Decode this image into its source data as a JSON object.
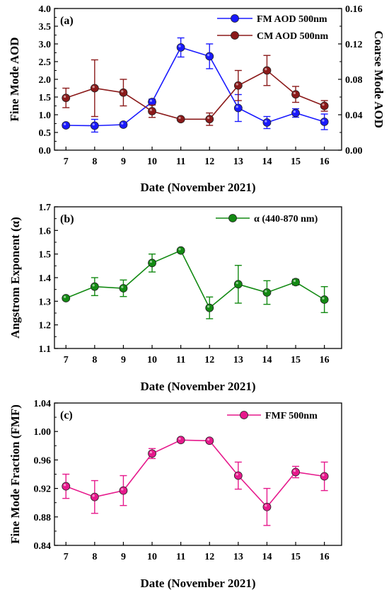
{
  "chart_data": [
    {
      "type": "line",
      "panel_label": "(a)",
      "x": [
        7,
        8,
        9,
        10,
        11,
        12,
        13,
        14,
        15,
        16
      ],
      "xlabel": "Date (November 2021)",
      "ylabel": "Fine Mode AOD",
      "ylabel_right": "Coarse Mode AOD",
      "ylim": [
        0.0,
        4.0
      ],
      "yticks": [
        "0.0",
        "0.5",
        "1.0",
        "1.5",
        "2.0",
        "2.5",
        "3.0",
        "3.5",
        "4.0"
      ],
      "ylim_right": [
        0.0,
        0.16
      ],
      "yticks_right": [
        "0.00",
        "0.04",
        "0.08",
        "0.12",
        "0.16"
      ],
      "legend_position": "top-right",
      "series": [
        {
          "name": "FM AOD 500nm",
          "axis": "left",
          "color": "#1a1aff",
          "values": [
            0.7,
            0.69,
            0.72,
            1.36,
            2.9,
            2.65,
            1.19,
            0.78,
            1.05,
            0.8
          ],
          "error": [
            0.06,
            0.18,
            0.06,
            0.08,
            0.27,
            0.35,
            0.38,
            0.17,
            0.12,
            0.22
          ]
        },
        {
          "name": "CM AOD 500nm",
          "axis": "right",
          "color": "#8b1a1a",
          "values": [
            0.059,
            0.07,
            0.065,
            0.044,
            0.035,
            0.035,
            0.073,
            0.09,
            0.063,
            0.05
          ],
          "error": [
            0.011,
            0.032,
            0.015,
            0.007,
            0.002,
            0.007,
            0.017,
            0.017,
            0.009,
            0.006
          ]
        }
      ]
    },
    {
      "type": "line",
      "panel_label": "(b)",
      "x": [
        7,
        8,
        9,
        10,
        11,
        12,
        13,
        14,
        15,
        16
      ],
      "xlabel": "Date (November 2021)",
      "ylabel": "Angstrom Exponent (α)",
      "ylim": [
        1.1,
        1.7
      ],
      "yticks": [
        "1.1",
        "1.2",
        "1.3",
        "1.4",
        "1.5",
        "1.6",
        "1.7"
      ],
      "legend_position": "top-right",
      "series": [
        {
          "name": "α (440-870 nm)",
          "color": "#138a13",
          "values": [
            1.313,
            1.362,
            1.355,
            1.462,
            1.515,
            1.272,
            1.372,
            1.337,
            1.381,
            1.307
          ],
          "error": [
            0.008,
            0.038,
            0.035,
            0.038,
            0.008,
            0.046,
            0.08,
            0.05,
            0.012,
            0.055
          ]
        }
      ]
    },
    {
      "type": "line",
      "panel_label": "(c)",
      "x": [
        7,
        8,
        9,
        10,
        11,
        12,
        13,
        14,
        15,
        16
      ],
      "xlabel": "Date (November 2021)",
      "ylabel": "Fine Mode Fraction (FMF)",
      "ylim": [
        0.84,
        1.04
      ],
      "yticks": [
        "0.84",
        "0.88",
        "0.92",
        "0.96",
        "1.00",
        "1.04"
      ],
      "legend_position": "top-right",
      "series": [
        {
          "name": "FMF 500nm",
          "color": "#e6198c",
          "values": [
            0.923,
            0.908,
            0.917,
            0.969,
            0.988,
            0.987,
            0.938,
            0.894,
            0.943,
            0.937
          ],
          "error": [
            0.017,
            0.023,
            0.021,
            0.007,
            0.002,
            0.003,
            0.019,
            0.026,
            0.008,
            0.02
          ]
        }
      ]
    }
  ]
}
